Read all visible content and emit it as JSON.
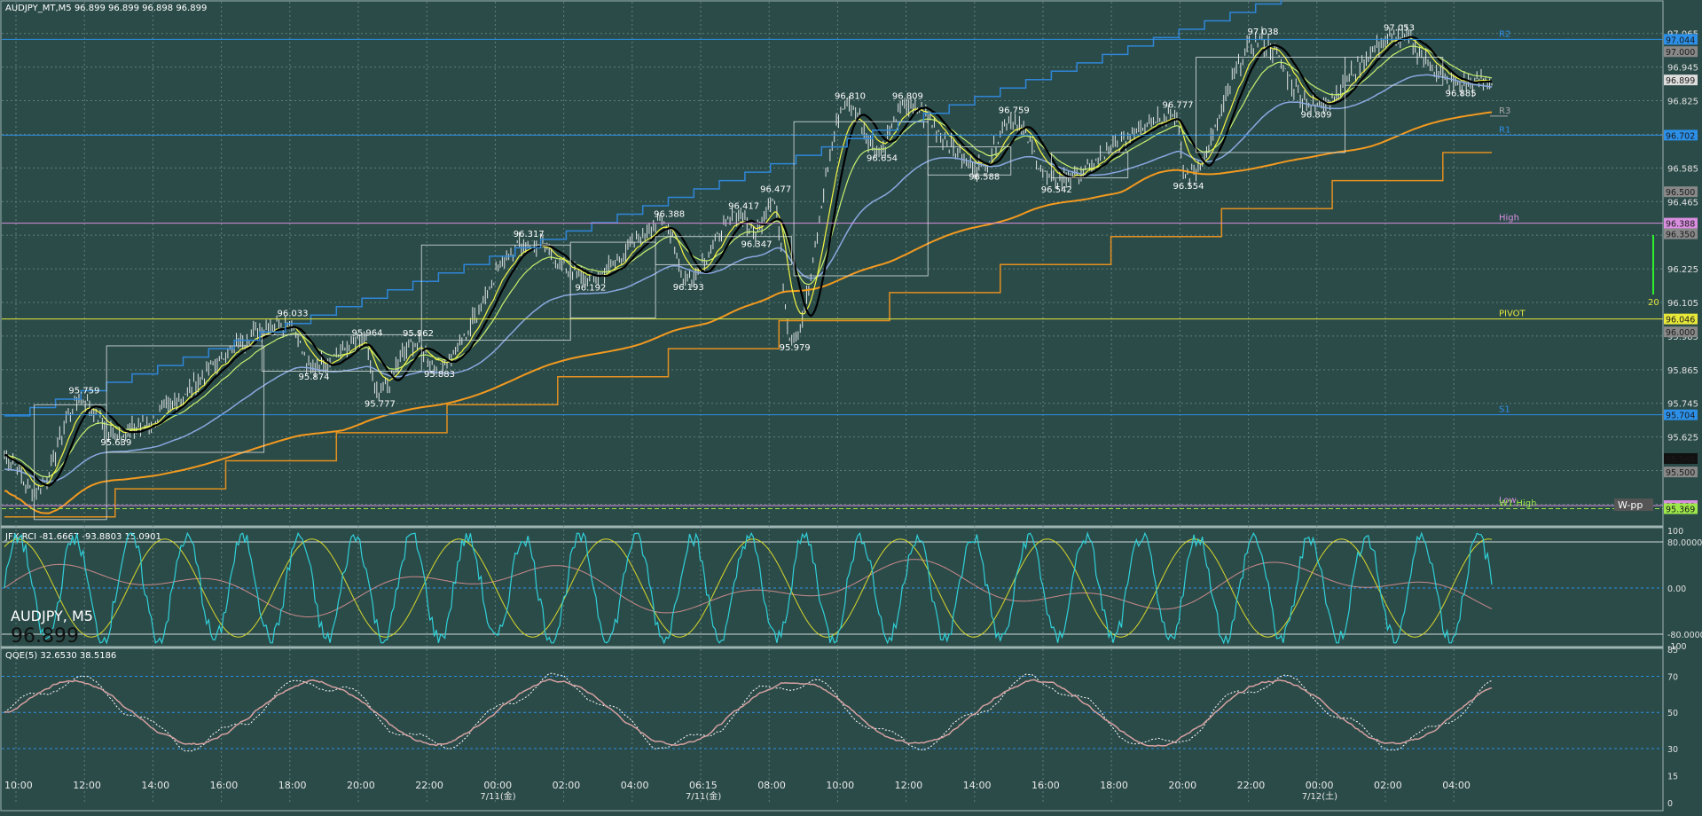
{
  "header": {
    "title": "AUDJPY_MT,M5  96.899 96.899 96.898 96.899",
    "symbol_watermark": "AUDJPY, M5",
    "price_watermark": "96.899"
  },
  "colors": {
    "background": "#2b4b49",
    "grid": "#5f7e7c",
    "price_wick": "#ffffff",
    "sma_black": "#000000",
    "ema_yellow": "#f5f542",
    "ema_light_green": "#c8f06e",
    "ma_blue": "#8aa8e0",
    "ma_orange": "#f39a1f",
    "step_blue": "#2f86d8",
    "step_orange": "#e3901f",
    "level_blue": "#2c8fe8",
    "level_pink": "#d98ee0",
    "level_yellow": "#e8e83a",
    "rci_cyan": "#2fd0d8",
    "rci_yellow": "#d8d82a",
    "rci_pink": "#c98a8a",
    "qqe_line": "#d4a0a0"
  },
  "chart_data": [
    {
      "type": "line",
      "name": "main-price",
      "ylim": [
        95.32,
        97.14
      ],
      "y_ticks": [
        "97.065",
        "96.945",
        "96.825",
        "96.705",
        "96.585",
        "96.465",
        "96.345",
        "96.225",
        "96.105",
        "95.985",
        "95.865",
        "95.745",
        "95.625",
        "95.505",
        "95.385"
      ],
      "x_tick_labels": [
        "10:00",
        "12:00",
        "14:00",
        "16:00",
        "18:00",
        "20:00",
        "22:00",
        "00:00",
        "02:00",
        "04:00",
        "06:15",
        "08:00",
        "10:00",
        "12:00",
        "14:00",
        "16:00",
        "18:00",
        "20:00",
        "22:00",
        "00:00",
        "02:00",
        "04:00"
      ],
      "date_labels": [
        {
          "text": "7/11(金)",
          "under": "00:00"
        },
        {
          "text": "7/11(金)",
          "under": "06:15"
        },
        {
          "text": "7/12(土)",
          "under": "00:00b"
        }
      ],
      "price_annotations": [
        {
          "t": 36,
          "v": 95.759,
          "label": "95.759",
          "pos": "above"
        },
        {
          "t": 51,
          "v": 95.639,
          "label": "95.639",
          "pos": "below"
        },
        {
          "t": 134,
          "v": 96.033,
          "label": "96.033",
          "pos": "above"
        },
        {
          "t": 144,
          "v": 95.874,
          "label": "95.874",
          "pos": "below"
        },
        {
          "t": 169,
          "v": 95.964,
          "label": "95.964",
          "pos": "above"
        },
        {
          "t": 175,
          "v": 95.777,
          "label": "95.777",
          "pos": "below"
        },
        {
          "t": 193,
          "v": 95.962,
          "label": "95.962",
          "pos": "above"
        },
        {
          "t": 203,
          "v": 95.883,
          "label": "95.883",
          "pos": "below"
        },
        {
          "t": 245,
          "v": 96.317,
          "label": "96.317",
          "pos": "above"
        },
        {
          "t": 274,
          "v": 96.192,
          "label": "96.192",
          "pos": "below"
        },
        {
          "t": 311,
          "v": 96.388,
          "label": "96.388",
          "pos": "above"
        },
        {
          "t": 320,
          "v": 96.193,
          "label": "96.193",
          "pos": "below"
        },
        {
          "t": 346,
          "v": 96.417,
          "label": "96.417",
          "pos": "above"
        },
        {
          "t": 361,
          "v": 96.477,
          "label": "96.477",
          "pos": "above"
        },
        {
          "t": 352,
          "v": 96.347,
          "label": "96.347",
          "pos": "below"
        },
        {
          "t": 370,
          "v": 95.979,
          "label": "95.979",
          "pos": "below"
        },
        {
          "t": 396,
          "v": 96.81,
          "label": "96.810",
          "pos": "above"
        },
        {
          "t": 411,
          "v": 96.654,
          "label": "96.654",
          "pos": "below"
        },
        {
          "t": 423,
          "v": 96.809,
          "label": "96.809",
          "pos": "above"
        },
        {
          "t": 459,
          "v": 96.588,
          "label": "96.588",
          "pos": "below"
        },
        {
          "t": 473,
          "v": 96.759,
          "label": "96.759",
          "pos": "above"
        },
        {
          "t": 493,
          "v": 96.542,
          "label": "96.542",
          "pos": "below"
        },
        {
          "t": 550,
          "v": 96.777,
          "label": "96.777",
          "pos": "above"
        },
        {
          "t": 555,
          "v": 96.554,
          "label": "96.554",
          "pos": "below"
        },
        {
          "t": 590,
          "v": 97.038,
          "label": "97.038",
          "pos": "above"
        },
        {
          "t": 615,
          "v": 96.809,
          "label": "96.809",
          "pos": "below"
        },
        {
          "t": 654,
          "v": 97.053,
          "label": "97.053",
          "pos": "above"
        },
        {
          "t": 683,
          "v": 96.885,
          "label": "96.885",
          "pos": "below"
        }
      ],
      "right_price_labels": [
        {
          "v": 97.044,
          "label": "97.044",
          "color": "#2c8fe8"
        },
        {
          "v": 97.0,
          "label": "97.000",
          "color": "#888888"
        },
        {
          "v": 96.899,
          "label": "96.899",
          "color": "#dddddd"
        },
        {
          "v": 96.702,
          "label": "96.702",
          "color": "#2c8fe8"
        },
        {
          "v": 96.5,
          "label": "96.500",
          "color": "#888888"
        },
        {
          "v": 96.388,
          "label": "96.388",
          "color": "#d98ee0"
        },
        {
          "v": 96.35,
          "label": "96.350",
          "color": "#888888"
        },
        {
          "v": 96.046,
          "label": "96.046",
          "color": "#e8e83a"
        },
        {
          "v": 96.0,
          "label": "96.000",
          "color": "#888888"
        },
        {
          "v": 95.704,
          "label": "95.704",
          "color": "#2c8fe8"
        },
        {
          "v": 95.548,
          "label": "95.548",
          "color": "#111111"
        },
        {
          "v": 95.5,
          "label": "95.500",
          "color": "#888888"
        },
        {
          "v": 95.38,
          "label": "95.380",
          "color": "#d98ee0"
        },
        {
          "v": 95.369,
          "label": "95.369",
          "color": "#9de84a"
        }
      ],
      "levels": [
        {
          "name": "R2",
          "v": 97.044,
          "color": "#2c8fe8"
        },
        {
          "name": "R1",
          "v": 96.702,
          "color": "#2c8fe8"
        },
        {
          "name": "High",
          "v": 96.388,
          "color": "#d98ee0"
        },
        {
          "name": "PIVOT",
          "v": 96.046,
          "color": "#e8e83a"
        },
        {
          "name": "S1",
          "v": 95.704,
          "color": "#2c8fe8"
        },
        {
          "name": "Low",
          "v": 95.38,
          "color": "#d98ee0"
        },
        {
          "name": "W1 High",
          "v": 95.369,
          "color": "#9de84a"
        },
        {
          "name": "R3",
          "v": 96.77,
          "color": "#aaaaaa"
        }
      ],
      "misc_labels": {
        "wpp": "W-pp",
        "bar_count": "20"
      }
    },
    {
      "type": "line",
      "name": "rci-panel",
      "title": "JFX-RCI -81.6667 -93.8803 15.0901",
      "ylim": [
        -100,
        100
      ],
      "y_ticks": [
        "100",
        "80.0000",
        "0.00",
        "-80.0000",
        "-100"
      ]
    },
    {
      "type": "line",
      "name": "qqe-panel",
      "title": "QQE(5) 32.6530 38.5186",
      "ylim": [
        0,
        85
      ],
      "y_ticks": [
        "85",
        "70",
        "50",
        "30",
        "15",
        "0"
      ]
    }
  ]
}
